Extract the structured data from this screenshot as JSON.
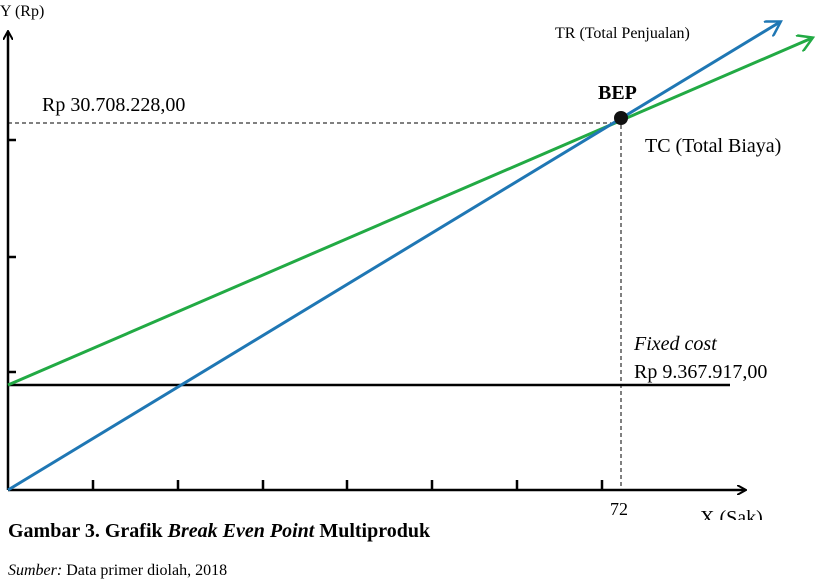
{
  "axes": {
    "y_label": "Y (Rp)",
    "x_label": "X (Sak)"
  },
  "lines": {
    "total_revenue": "TR (Total Penjualan)",
    "total_cost": "TC (Total Biaya)"
  },
  "bep": {
    "label": "BEP",
    "revenue": "Rp 30.708.228,00",
    "quantity": "72"
  },
  "fixed_cost": {
    "label": "Fixed cost",
    "value": "Rp 9.367.917,00"
  },
  "caption": {
    "prefix": "Gambar 3. Grafik ",
    "emphasis": "Break Even Point",
    "suffix": " Multiproduk"
  },
  "source": {
    "label": "Sumber:",
    "text": " Data primer diolah, 2018"
  }
}
